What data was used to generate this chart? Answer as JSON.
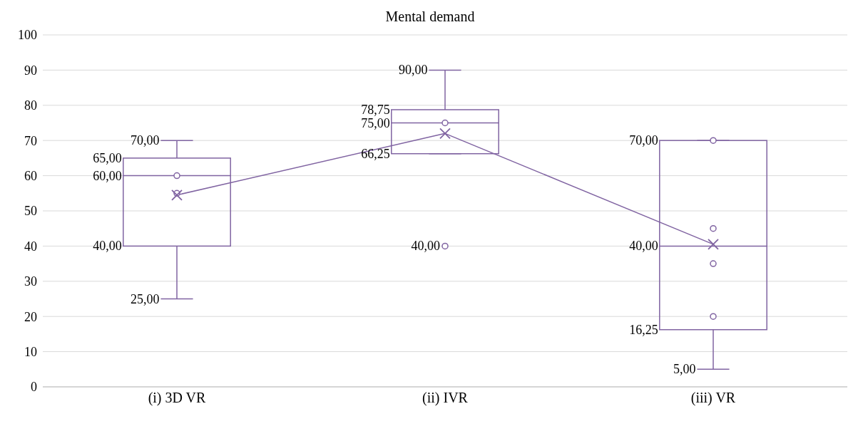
{
  "chart_data": {
    "type": "box",
    "title": "Mental demand",
    "categories": [
      "(i) 3D VR",
      "(ii) IVR",
      "(iii) VR"
    ],
    "ylim": [
      0,
      100
    ],
    "yticks": [
      0,
      10,
      20,
      30,
      40,
      50,
      60,
      70,
      80,
      90,
      100
    ],
    "grid": "y",
    "series": [
      {
        "color": "#8064a2",
        "boxes": [
          {
            "low": 25,
            "q1": 40,
            "median": 60,
            "q3": 65,
            "high": 70
          },
          {
            "low": 66.25,
            "q1": 66.25,
            "median": 75,
            "q3": 78.75,
            "high": 90,
            "outliers": [
              40
            ]
          },
          {
            "low": 5,
            "q1": 16.25,
            "median": 40,
            "q3": 70,
            "high": 70
          }
        ]
      },
      {
        "type": "scatter",
        "color": "#8064a2",
        "marker": "circle",
        "x": [
          "(i) 3D VR",
          "(i) 3D VR",
          "(ii) IVR",
          "(iii) VR",
          "(iii) VR",
          "(iii) VR",
          "(iii) VR"
        ],
        "values": [
          60,
          55,
          75,
          70,
          45,
          35,
          20
        ]
      },
      {
        "type": "line",
        "color": "#8064a2",
        "marker": "cross",
        "values": [
          54.5,
          72,
          40.5
        ]
      }
    ],
    "annotations": [
      "70,00",
      "65,00",
      "60,00",
      "40,00",
      "25,00",
      "90,00",
      "78,75",
      "75,00",
      "66,25",
      "40,00",
      "70,00",
      "40,00",
      "16,25",
      "5,00"
    ]
  }
}
